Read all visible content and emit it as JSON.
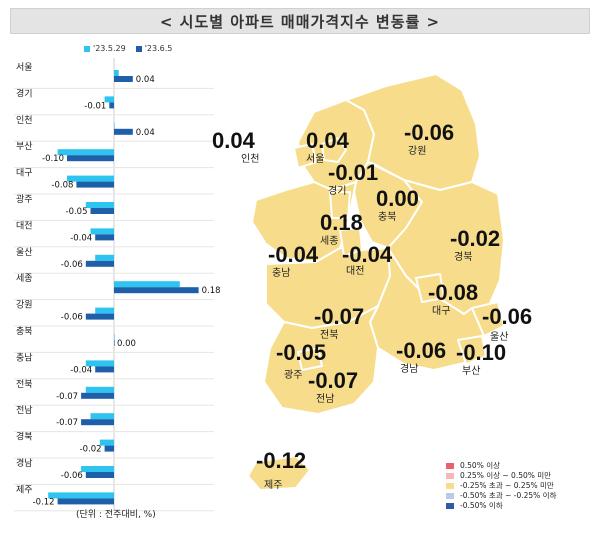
{
  "title": "< 시도별 아파트 매매가격지수 변동률 >",
  "unit_note": "(단위 : 전주대비, %)",
  "colors": {
    "prev": "#2ec4f0",
    "curr": "#1f5faa",
    "map_fill": "#f7dc8b",
    "map_stroke": "#ffffff",
    "title_bg": "#e4e4e4"
  },
  "chart_data": {
    "type": "bar",
    "orientation": "horizontal",
    "categories": [
      "서울",
      "경기",
      "인천",
      "부산",
      "대구",
      "광주",
      "대전",
      "울산",
      "세종",
      "강원",
      "충북",
      "충남",
      "전북",
      "전남",
      "경북",
      "경남",
      "제주"
    ],
    "series": [
      {
        "name": "'23.5.29",
        "values": [
          0.01,
          -0.02,
          0.0,
          -0.12,
          -0.1,
          -0.06,
          -0.05,
          -0.04,
          0.14,
          -0.04,
          0.0,
          -0.06,
          -0.06,
          -0.05,
          -0.03,
          -0.07,
          -0.14
        ]
      },
      {
        "name": "'23.6.5",
        "values": [
          0.04,
          -0.01,
          0.04,
          -0.1,
          -0.08,
          -0.05,
          -0.04,
          -0.06,
          0.18,
          -0.06,
          0.0,
          -0.04,
          -0.07,
          -0.07,
          -0.02,
          -0.06,
          -0.12
        ]
      }
    ],
    "data_labels": [
      "0.04",
      "-0.01",
      "0.04",
      "-0.10",
      "-0.08",
      "-0.05",
      "-0.04",
      "-0.06",
      "0.18",
      "-0.06",
      "0.00",
      "-0.04",
      "-0.07",
      "-0.07",
      "-0.02",
      "-0.06",
      "-0.12"
    ],
    "xlim": [
      -0.15,
      0.2
    ],
    "legend": "top"
  },
  "map": {
    "regions": [
      {
        "name": "인천",
        "value": "0.04"
      },
      {
        "name": "서울",
        "value": "0.04"
      },
      {
        "name": "강원",
        "value": "-0.06"
      },
      {
        "name": "경기",
        "value": "-0.01"
      },
      {
        "name": "충북",
        "value": "0.00"
      },
      {
        "name": "세종",
        "value": "0.18"
      },
      {
        "name": "충남",
        "value": "-0.04"
      },
      {
        "name": "대전",
        "value": "-0.04"
      },
      {
        "name": "경북",
        "value": "-0.02"
      },
      {
        "name": "대구",
        "value": "-0.08"
      },
      {
        "name": "울산",
        "value": "-0.06"
      },
      {
        "name": "전북",
        "value": "-0.07"
      },
      {
        "name": "광주",
        "value": "-0.05"
      },
      {
        "name": "경남",
        "value": "-0.06"
      },
      {
        "name": "부산",
        "value": "-0.10"
      },
      {
        "name": "전남",
        "value": "-0.07"
      },
      {
        "name": "제주",
        "value": "-0.12"
      }
    ],
    "legend": [
      {
        "label": "0.50% 이상",
        "color": "#e8626c"
      },
      {
        "label": "0.25% 이상 ~ 0.50% 미만",
        "color": "#f4b9b6"
      },
      {
        "label": "-0.25% 초과 ~ 0.25% 미만",
        "color": "#f7dc8b"
      },
      {
        "label": "-0.50% 초과 ~ -0.25% 이하",
        "color": "#b9c9e6"
      },
      {
        "label": "-0.50% 이하",
        "color": "#2f5aa8"
      }
    ]
  }
}
